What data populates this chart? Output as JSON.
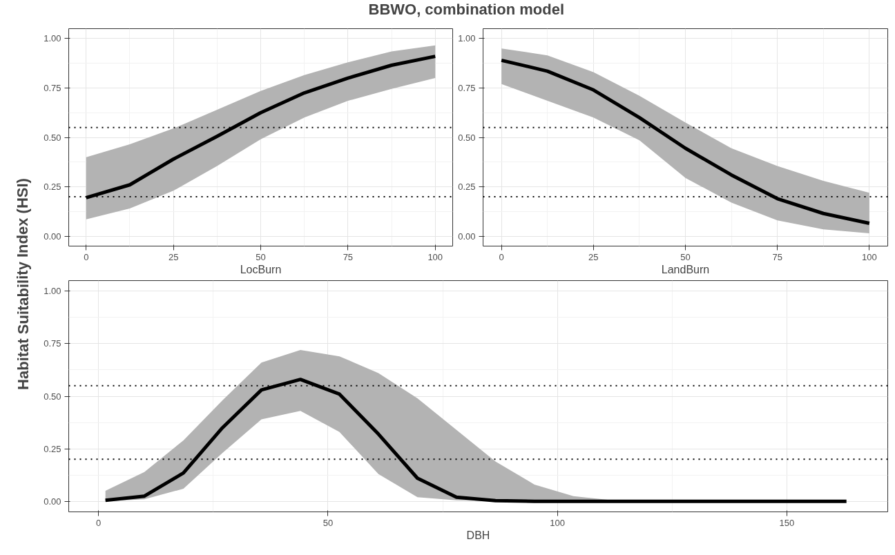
{
  "chart_data": [
    {
      "type": "line",
      "title": "BBWO, combination model",
      "ylabel": "Habitat Suitability Index (HSI)",
      "xlabel": "LocBurn",
      "x": [
        0,
        12.5,
        25,
        37.5,
        50,
        62.5,
        75,
        87.5,
        100
      ],
      "series": [
        {
          "color": "#000000",
          "values": [
            0.195,
            0.26,
            0.39,
            0.505,
            0.625,
            0.725,
            0.8,
            0.865,
            0.91
          ],
          "lower": [
            0.085,
            0.14,
            0.23,
            0.355,
            0.49,
            0.6,
            0.685,
            0.745,
            0.8
          ],
          "upper": [
            0.4,
            0.465,
            0.545,
            0.64,
            0.735,
            0.815,
            0.88,
            0.935,
            0.965
          ]
        }
      ],
      "xlim": [
        -5,
        105
      ],
      "xticks": [
        0,
        25,
        50,
        75,
        100
      ],
      "ylim": [
        -0.05,
        1.05
      ],
      "yticks": [
        {
          "value": 0,
          "label": "0.00"
        },
        {
          "value": 0.25,
          "label": "0.25"
        },
        {
          "value": 0.5,
          "label": "0.50"
        },
        {
          "value": 0.75,
          "label": "0.75"
        },
        {
          "value": 1,
          "label": "1.00"
        }
      ],
      "ref_lines": [
        {
          "axis": "y",
          "value": 0.55,
          "line_style": "dotted"
        },
        {
          "axis": "y",
          "value": 0.2,
          "line_style": "dotted"
        }
      ],
      "grid": true,
      "line_style": "solid"
    },
    {
      "type": "line",
      "xlabel": "LandBurn",
      "x": [
        0,
        12.5,
        25,
        37.5,
        50,
        62.5,
        75,
        87.5,
        100
      ],
      "series": [
        {
          "color": "#000000",
          "values": [
            0.89,
            0.835,
            0.74,
            0.6,
            0.445,
            0.31,
            0.19,
            0.115,
            0.065
          ],
          "lower": [
            0.77,
            0.685,
            0.6,
            0.485,
            0.295,
            0.17,
            0.08,
            0.035,
            0.015
          ],
          "upper": [
            0.95,
            0.915,
            0.83,
            0.71,
            0.575,
            0.445,
            0.355,
            0.28,
            0.22
          ]
        }
      ],
      "xlim": [
        -5,
        105
      ],
      "xticks": [
        0,
        25,
        50,
        75,
        100
      ],
      "ylim": [
        -0.05,
        1.05
      ],
      "yticks": [
        {
          "value": 0,
          "label": "0.00"
        },
        {
          "value": 0.25,
          "label": "0.25"
        },
        {
          "value": 0.5,
          "label": "0.50"
        },
        {
          "value": 0.75,
          "label": "0.75"
        },
        {
          "value": 1,
          "label": "1.00"
        }
      ],
      "ref_lines": [
        {
          "axis": "y",
          "value": 0.55,
          "line_style": "dotted"
        },
        {
          "axis": "y",
          "value": 0.2,
          "line_style": "dotted"
        }
      ],
      "grid": true,
      "line_style": "solid"
    },
    {
      "type": "line",
      "xlabel": "DBH",
      "x": [
        1.5,
        10,
        18.5,
        27,
        35.5,
        44,
        52.5,
        61,
        69.5,
        78,
        86.5,
        95,
        103.5,
        112,
        120.5,
        129,
        137.5,
        146,
        154.5,
        163
      ],
      "series": [
        {
          "color": "#000000",
          "values": [
            0.005,
            0.025,
            0.135,
            0.35,
            0.53,
            0.58,
            0.51,
            0.32,
            0.11,
            0.02,
            0.003,
            0,
            0,
            0,
            0,
            0,
            0,
            0,
            0,
            0
          ],
          "lower": [
            0,
            0.01,
            0.06,
            0.23,
            0.39,
            0.43,
            0.33,
            0.13,
            0.02,
            0.005,
            0,
            0,
            0,
            0,
            0,
            0,
            0,
            0,
            0,
            0
          ],
          "upper": [
            0.05,
            0.14,
            0.29,
            0.48,
            0.66,
            0.72,
            0.69,
            0.61,
            0.49,
            0.34,
            0.19,
            0.08,
            0.025,
            0.005,
            0,
            0,
            0,
            0,
            0,
            0
          ]
        }
      ],
      "xlim": [
        -6.5,
        172
      ],
      "xticks": [
        0,
        50,
        100,
        150
      ],
      "ylim": [
        -0.05,
        1.05
      ],
      "yticks": [
        {
          "value": 0,
          "label": "0.00"
        },
        {
          "value": 0.25,
          "label": "0.25"
        },
        {
          "value": 0.5,
          "label": "0.50"
        },
        {
          "value": 0.75,
          "label": "0.75"
        },
        {
          "value": 1,
          "label": "1.00"
        }
      ],
      "ref_lines": [
        {
          "axis": "y",
          "value": 0.55,
          "line_style": "dotted"
        },
        {
          "axis": "y",
          "value": 0.2,
          "line_style": "dotted"
        }
      ],
      "grid": true,
      "line_style": "solid"
    }
  ]
}
